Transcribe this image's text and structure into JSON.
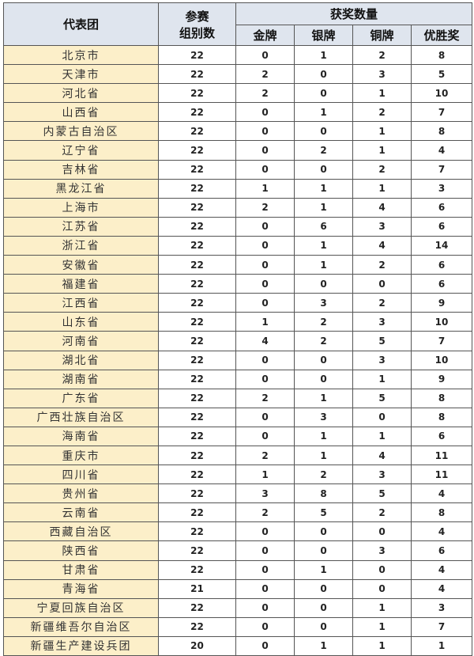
{
  "header": {
    "delegation": "代表团",
    "groups_line1": "参赛",
    "groups_line2": "组别数",
    "awards": "获奖数量",
    "gold": "金牌",
    "silver": "银牌",
    "bronze": "铜牌",
    "merit": "优胜奖"
  },
  "colors": {
    "header_bg": "#dfe5ee",
    "name_bg": "#fcefc9"
  },
  "rows": [
    [
      "北京市",
      "22",
      "0",
      "1",
      "2",
      "8"
    ],
    [
      "天津市",
      "22",
      "2",
      "0",
      "3",
      "5"
    ],
    [
      "河北省",
      "22",
      "2",
      "0",
      "1",
      "10"
    ],
    [
      "山西省",
      "22",
      "0",
      "1",
      "2",
      "7"
    ],
    [
      "内蒙古自治区",
      "22",
      "0",
      "0",
      "1",
      "8"
    ],
    [
      "辽宁省",
      "22",
      "0",
      "2",
      "1",
      "4"
    ],
    [
      "吉林省",
      "22",
      "0",
      "0",
      "2",
      "7"
    ],
    [
      "黑龙江省",
      "22",
      "1",
      "1",
      "1",
      "3"
    ],
    [
      "上海市",
      "22",
      "2",
      "1",
      "4",
      "6"
    ],
    [
      "江苏省",
      "22",
      "0",
      "6",
      "3",
      "6"
    ],
    [
      "浙江省",
      "22",
      "0",
      "1",
      "4",
      "14"
    ],
    [
      "安徽省",
      "22",
      "0",
      "1",
      "2",
      "6"
    ],
    [
      "福建省",
      "22",
      "0",
      "0",
      "0",
      "6"
    ],
    [
      "江西省",
      "22",
      "0",
      "3",
      "2",
      "9"
    ],
    [
      "山东省",
      "22",
      "1",
      "2",
      "3",
      "10"
    ],
    [
      "河南省",
      "22",
      "4",
      "2",
      "5",
      "7"
    ],
    [
      "湖北省",
      "22",
      "0",
      "0",
      "3",
      "10"
    ],
    [
      "湖南省",
      "22",
      "0",
      "0",
      "1",
      "9"
    ],
    [
      "广东省",
      "22",
      "2",
      "1",
      "5",
      "8"
    ],
    [
      "广西壮族自治区",
      "22",
      "0",
      "3",
      "0",
      "8"
    ],
    [
      "海南省",
      "22",
      "0",
      "1",
      "1",
      "6"
    ],
    [
      "重庆市",
      "22",
      "2",
      "1",
      "4",
      "11"
    ],
    [
      "四川省",
      "22",
      "1",
      "2",
      "3",
      "11"
    ],
    [
      "贵州省",
      "22",
      "3",
      "8",
      "5",
      "4"
    ],
    [
      "云南省",
      "22",
      "2",
      "5",
      "2",
      "8"
    ],
    [
      "西藏自治区",
      "22",
      "0",
      "0",
      "0",
      "4"
    ],
    [
      "陕西省",
      "22",
      "0",
      "0",
      "3",
      "6"
    ],
    [
      "甘肃省",
      "22",
      "0",
      "1",
      "0",
      "4"
    ],
    [
      "青海省",
      "21",
      "0",
      "0",
      "0",
      "4"
    ],
    [
      "宁夏回族自治区",
      "22",
      "0",
      "0",
      "1",
      "3"
    ],
    [
      "新疆维吾尔自治区",
      "22",
      "0",
      "0",
      "1",
      "7"
    ],
    [
      "新疆生产建设兵团",
      "20",
      "0",
      "1",
      "1",
      "1"
    ]
  ]
}
